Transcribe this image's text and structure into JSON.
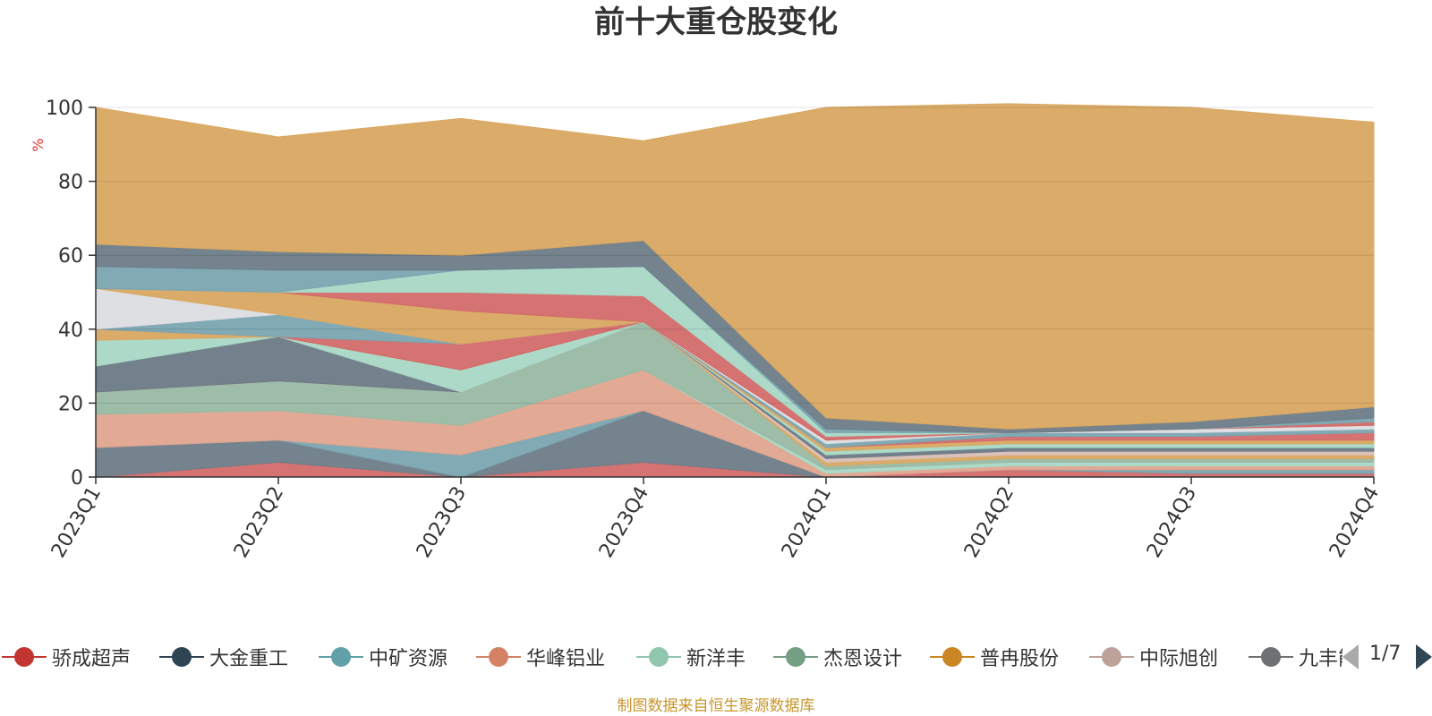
{
  "chart_data": {
    "type": "area",
    "title": "前十大重仓股变化",
    "ylabel": "%",
    "ylim": [
      0,
      100
    ],
    "yticks": [
      0,
      20,
      40,
      60,
      80,
      100
    ],
    "categories": [
      "2023Q1",
      "2023Q2",
      "2023Q3",
      "2023Q4",
      "2024Q1",
      "2024Q2",
      "2024Q3",
      "2024Q4"
    ],
    "series": [
      {
        "name": "骄成超声",
        "color": "#d36a6a",
        "values": [
          0,
          4,
          0,
          4,
          0,
          2,
          1,
          1
        ]
      },
      {
        "name": "大金重工",
        "color": "#6d7c88",
        "values": [
          8,
          6,
          0,
          14,
          0,
          0,
          0,
          0
        ]
      },
      {
        "name": "中矿资源",
        "color": "#7aa5b0",
        "values": [
          0,
          0,
          6,
          0,
          0,
          0,
          1,
          1
        ]
      },
      {
        "name": "华峰铝业",
        "color": "#e0a48e",
        "values": [
          9,
          8,
          8,
          11,
          1,
          1,
          1,
          1
        ]
      },
      {
        "name": "新洋丰",
        "color": "#a9d7c5",
        "values": [
          0,
          0,
          0,
          0,
          1,
          1,
          1,
          1
        ]
      },
      {
        "name": "杰恩设计",
        "color": "#99b9a4",
        "values": [
          6,
          8,
          9,
          13,
          1,
          1,
          1,
          1
        ]
      },
      {
        "name": "普冉股份",
        "color": "#d9a861",
        "values": [
          0,
          0,
          0,
          0,
          1,
          1,
          1,
          1
        ]
      },
      {
        "name": "中际旭创",
        "color": "#d8bfb6",
        "values": [
          0,
          0,
          0,
          0,
          1,
          1,
          1,
          1
        ]
      },
      {
        "name": "九丰能源",
        "color": "#6c7a86",
        "values": [
          7,
          12,
          0,
          0,
          1,
          1,
          1,
          1
        ]
      },
      {
        "name": "",
        "color": "#a9d7c5",
        "values": [
          7,
          0,
          6,
          0,
          1,
          1,
          1,
          1
        ]
      },
      {
        "name": "",
        "color": "#d9a861",
        "values": [
          3,
          0,
          0,
          0,
          1,
          1,
          1,
          1
        ]
      },
      {
        "name": "",
        "color": "#d36a6a",
        "values": [
          0,
          0,
          7,
          0,
          0,
          1,
          1,
          2
        ]
      },
      {
        "name": "",
        "color": "#7aa5b0",
        "values": [
          0,
          6,
          0,
          0,
          1,
          1,
          1,
          1
        ]
      },
      {
        "name": "",
        "color": "#dcdde2",
        "values": [
          11,
          0,
          0,
          0,
          1,
          0,
          1,
          1
        ]
      },
      {
        "name": "",
        "color": "#d9a861",
        "values": [
          0,
          6,
          9,
          0,
          0,
          0,
          0,
          0
        ]
      },
      {
        "name": "",
        "color": "#d36a6a",
        "values": [
          0,
          0,
          5,
          7,
          1,
          0,
          0,
          1
        ]
      },
      {
        "name": "",
        "color": "#a9d7c5",
        "values": [
          0,
          0,
          6,
          8,
          1,
          0,
          0,
          0
        ]
      },
      {
        "name": "",
        "color": "#7aa5b0",
        "values": [
          6,
          6,
          0,
          0,
          1,
          0,
          0,
          1
        ]
      },
      {
        "name": "",
        "color": "#6d7c88",
        "values": [
          6,
          5,
          4,
          7,
          3,
          1,
          2,
          3
        ]
      },
      {
        "name": "",
        "color": "#d9a861",
        "values": [
          37,
          31,
          37,
          27,
          84,
          88,
          85,
          77
        ]
      }
    ]
  },
  "legend": {
    "items": [
      {
        "name": "骄成超声",
        "color": "#c23531"
      },
      {
        "name": "大金重工",
        "color": "#2f4554"
      },
      {
        "name": "中矿资源",
        "color": "#61a0a8"
      },
      {
        "name": "华峰铝业",
        "color": "#d48265"
      },
      {
        "name": "新洋丰",
        "color": "#91c7ae"
      },
      {
        "name": "杰恩设计",
        "color": "#749f83"
      },
      {
        "name": "普冉股份",
        "color": "#ca8622"
      },
      {
        "name": "中际旭创",
        "color": "#bda29a"
      },
      {
        "name": "九丰能源",
        "color": "#6e7074"
      }
    ],
    "page_text": "1/7"
  },
  "footer": "制图数据来自恒生聚源数据库"
}
